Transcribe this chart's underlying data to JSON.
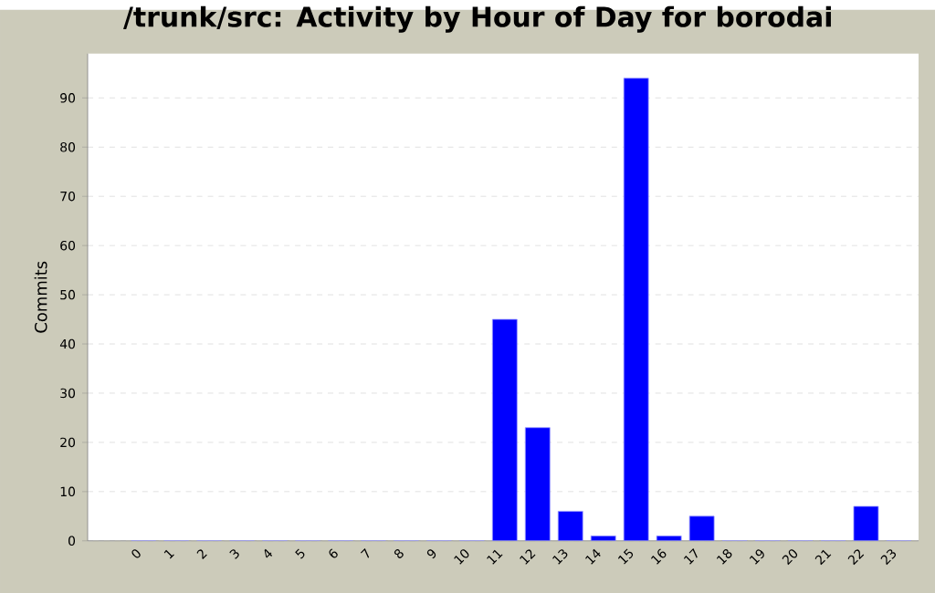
{
  "chart_data": {
    "type": "bar",
    "title": "/trunk/src: Activity by Hour of Day for borodai",
    "ylabel": "Commits",
    "categories": [
      "0",
      "1",
      "2",
      "3",
      "4",
      "5",
      "6",
      "7",
      "8",
      "9",
      "10",
      "11",
      "12",
      "13",
      "14",
      "15",
      "16",
      "17",
      "18",
      "19",
      "20",
      "21",
      "22",
      "23"
    ],
    "values": [
      0,
      0,
      0,
      0,
      0,
      0,
      0,
      0,
      0,
      0,
      0,
      45,
      23,
      6,
      1,
      94,
      1,
      5,
      0,
      0,
      0,
      0,
      7,
      0
    ],
    "color": "#0000ff",
    "ylim": [
      0,
      99
    ],
    "yticks": [
      0,
      10,
      20,
      30,
      40,
      50,
      60,
      70,
      80,
      90
    ],
    "grid": "y"
  }
}
